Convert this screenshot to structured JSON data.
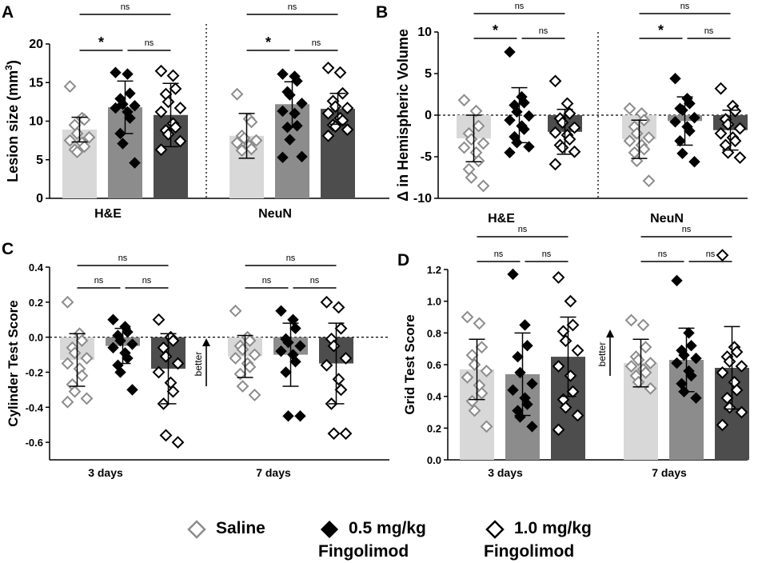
{
  "colors": {
    "saline_bar": "#d8d8d8",
    "low_bar": "#8c8c8c",
    "high_bar": "#4d4d4d",
    "saline_marker": "#8c8c8c",
    "low_marker": "#000000",
    "high_marker": "#000000"
  },
  "legend": {
    "items": [
      {
        "label_line1": "Saline",
        "label_line2": "",
        "marker": "open-diamond-gray"
      },
      {
        "label_line1": "0.5 mg/kg",
        "label_line2": "Fingolimod",
        "marker": "filled-diamond-black"
      },
      {
        "label_line1": "1.0 mg/kg",
        "label_line2": "Fingolimod",
        "marker": "open-diamond-black"
      }
    ]
  },
  "chart_data": [
    {
      "panel": "A",
      "type": "bar",
      "ylabel": "Lesion size (mm3)",
      "ylabel_main": "Lesion size (mm",
      "ylabel_sup": "3",
      "ylabel_close": ")",
      "ylim": [
        0,
        20
      ],
      "yticks": [
        "0",
        "5",
        "10",
        "15",
        "20"
      ],
      "ytick_values": [
        0,
        5,
        10,
        15,
        20
      ],
      "groups": [
        "H&E",
        "NeuN"
      ],
      "series_names": [
        "Saline",
        "0.5 mg/kg Fingolimod",
        "1.0 mg/kg Fingolimod"
      ],
      "means": [
        [
          8.9,
          11.8,
          10.8
        ],
        [
          8.1,
          12.2,
          11.6
        ]
      ],
      "sd": [
        [
          1.6,
          3.4,
          4.1
        ],
        [
          2.9,
          2.9,
          2.0
        ]
      ],
      "points": [
        [
          [
            14.5,
            10.4,
            10.2,
            9.5,
            8.4,
            7.9,
            7.5,
            7.2,
            6.7,
            6.3,
            6.0
          ],
          [
            16.3,
            16.1,
            13.6,
            12.9,
            12.2,
            12.0,
            11.7,
            11.2,
            10.4,
            8.4,
            7.1,
            4.6
          ],
          [
            16.5,
            15.9,
            14.2,
            13.5,
            12.5,
            11.7,
            11.2,
            9.7,
            9.2,
            8.8,
            8.3,
            7.4,
            6.3
          ]
        ],
        [
          [
            13.5,
            10.3,
            9.9,
            8.1,
            7.8,
            7.5,
            7.2,
            6.8,
            6.4,
            6.2
          ],
          [
            16.1,
            15.8,
            15.2,
            13.8,
            13.4,
            12.3,
            11.3,
            11.0,
            9.4,
            9.2,
            7.6,
            5.4,
            5.3
          ],
          [
            16.9,
            16.3,
            13.6,
            12.6,
            11.9,
            11.7,
            11.0,
            10.4,
            10.1,
            9.5,
            9.3,
            8.9,
            8.1
          ]
        ]
      ],
      "comparisons": [
        [
          "ns",
          "*",
          "ns"
        ],
        [
          "ns",
          "*",
          "ns"
        ]
      ],
      "zero_line": false
    },
    {
      "panel": "B",
      "type": "bar",
      "ylabel": "Δ in Hemispheric Volume",
      "ylim": [
        -10,
        10
      ],
      "yticks": [
        "-10",
        "-5",
        "0",
        "5",
        "10"
      ],
      "ytick_values": [
        -10,
        -5,
        0,
        5,
        10
      ],
      "groups": [
        "H&E",
        "NeuN"
      ],
      "series_names": [
        "Saline",
        "0.5 mg/kg Fingolimod",
        "1.0 mg/kg Fingolimod"
      ],
      "means": [
        [
          -2.8,
          0.0,
          -2.0
        ],
        [
          -2.9,
          -0.7,
          -1.8
        ]
      ],
      "sd": [
        [
          2.8,
          3.3,
          2.7
        ],
        [
          2.3,
          2.9,
          2.4
        ]
      ],
      "points": [
        [
          [
            1.8,
            0.5,
            -1.3,
            -2.2,
            -2.9,
            -3.4,
            -3.9,
            -4.5,
            -5.5,
            -6.5,
            -7.5,
            -8.5
          ],
          [
            7.6,
            2.2,
            1.5,
            1.2,
            0.4,
            -0.1,
            -0.6,
            -1.3,
            -1.7,
            -2.6,
            -3.3,
            -3.8,
            -4.5
          ],
          [
            4.1,
            1.4,
            0.2,
            -0.4,
            -0.9,
            -1.5,
            -2.1,
            -2.4,
            -2.9,
            -3.6,
            -3.9,
            -4.4,
            -5.9
          ]
        ],
        [
          [
            0.8,
            0.2,
            -0.6,
            -1.4,
            -2.2,
            -2.7,
            -3.1,
            -3.6,
            -4.1,
            -4.5,
            -5.5,
            -7.9
          ],
          [
            4.4,
            2.0,
            1.4,
            0.8,
            0.6,
            -0.3,
            -0.8,
            -1.4,
            -1.9,
            -3.1,
            -4.6,
            -5.6
          ],
          [
            3.2,
            1.1,
            0.5,
            -0.5,
            -1.1,
            -1.6,
            -2.2,
            -2.7,
            -3.1,
            -3.6,
            -4.5,
            -5.1
          ]
        ]
      ],
      "comparisons": [
        [
          "ns",
          "*",
          "ns"
        ],
        [
          "ns",
          "*",
          "ns"
        ]
      ],
      "zero_line": true
    },
    {
      "panel": "C",
      "type": "bar",
      "ylabel": "Cylinder Test Score",
      "ylim": [
        -0.7,
        0.4
      ],
      "yticks": [
        "-0.6",
        "-0.4",
        "-0.2",
        "0.0",
        "0.2",
        "0.4"
      ],
      "ytick_values": [
        -0.6,
        -0.4,
        -0.2,
        0.0,
        0.2,
        0.4
      ],
      "groups": [
        "3 days",
        "7 days"
      ],
      "series_names": [
        "Saline",
        "0.5 mg/kg Fingolimod",
        "1.0 mg/kg Fingolimod"
      ],
      "means": [
        [
          -0.13,
          -0.05,
          -0.18
        ],
        [
          -0.11,
          -0.1,
          -0.15
        ]
      ],
      "sd": [
        [
          0.15,
          0.1,
          0.2
        ],
        [
          0.12,
          0.18,
          0.23
        ]
      ],
      "points": [
        [
          [
            0.2,
            0.02,
            -0.02,
            -0.06,
            -0.09,
            -0.12,
            -0.15,
            -0.18,
            -0.22,
            -0.27,
            -0.31,
            -0.35,
            -0.37
          ],
          [
            0.1,
            0.06,
            0.03,
            0.01,
            -0.02,
            -0.04,
            -0.06,
            -0.09,
            -0.12,
            -0.16,
            -0.2,
            -0.3
          ],
          [
            0.1,
            0.0,
            -0.02,
            -0.06,
            -0.11,
            -0.15,
            -0.2,
            -0.26,
            -0.31,
            -0.38,
            -0.56,
            -0.6
          ]
        ],
        [
          [
            0.15,
            0.0,
            -0.02,
            -0.05,
            -0.07,
            -0.1,
            -0.12,
            -0.15,
            -0.17,
            -0.21,
            -0.28,
            -0.33
          ],
          [
            0.15,
            0.1,
            0.05,
            -0.01,
            -0.03,
            -0.05,
            -0.08,
            -0.1,
            -0.14,
            -0.2,
            -0.45,
            -0.45
          ],
          [
            0.2,
            0.17,
            0.05,
            -0.01,
            -0.05,
            -0.12,
            -0.16,
            -0.24,
            -0.3,
            -0.38,
            -0.55,
            -0.55
          ]
        ]
      ],
      "comparisons": [
        [
          "ns",
          "ns",
          "ns"
        ],
        [
          "ns",
          "ns",
          "ns"
        ]
      ],
      "zero_line": true,
      "annotation": "better"
    },
    {
      "panel": "D",
      "type": "bar",
      "ylabel": "Grid Test Score",
      "ylim": [
        0,
        1.3
      ],
      "yticks": [
        "0.0",
        "0.2",
        "0.4",
        "0.6",
        "0.8",
        "1.0",
        "1.2"
      ],
      "ytick_values": [
        0,
        0.2,
        0.4,
        0.6,
        0.8,
        1.0,
        1.2
      ],
      "groups": [
        "3 days",
        "7 days"
      ],
      "series_names": [
        "Saline",
        "0.5 mg/kg Fingolimod",
        "1.0 mg/kg Fingolimod"
      ],
      "means": [
        [
          0.57,
          0.54,
          0.65
        ],
        [
          0.61,
          0.63,
          0.58
        ]
      ],
      "sd": [
        [
          0.19,
          0.26,
          0.25
        ],
        [
          0.15,
          0.2,
          0.26
        ]
      ],
      "points": [
        [
          [
            0.9,
            0.86,
            0.71,
            0.66,
            0.6,
            0.56,
            0.52,
            0.47,
            0.42,
            0.37,
            0.31,
            0.21
          ],
          [
            1.17,
            0.85,
            0.72,
            0.65,
            0.55,
            0.48,
            0.44,
            0.39,
            0.35,
            0.31,
            0.27,
            0.21
          ],
          [
            1.15,
            1.0,
            0.85,
            0.81,
            0.75,
            0.69,
            0.59,
            0.53,
            0.43,
            0.38,
            0.33,
            0.28,
            0.19
          ]
        ],
        [
          [
            0.88,
            0.85,
            0.71,
            0.65,
            0.63,
            0.61,
            0.59,
            0.57,
            0.55,
            0.53,
            0.49,
            0.45
          ],
          [
            1.13,
            0.8,
            0.72,
            0.69,
            0.66,
            0.64,
            0.61,
            0.56,
            0.53,
            0.48,
            0.43,
            0.39
          ],
          [
            1.29,
            0.71,
            0.68,
            0.65,
            0.62,
            0.59,
            0.55,
            0.49,
            0.44,
            0.39,
            0.33,
            0.3,
            0.22
          ]
        ]
      ],
      "comparisons": [
        [
          "ns",
          "ns",
          "ns"
        ],
        [
          "ns",
          "ns",
          "ns"
        ]
      ],
      "zero_line": false,
      "annotation": "better"
    }
  ]
}
